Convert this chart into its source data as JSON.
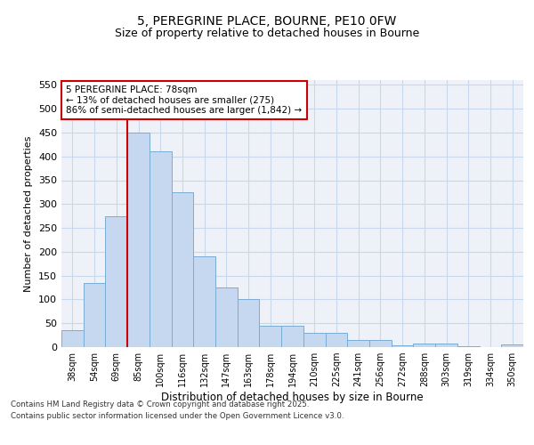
{
  "title_line1": "5, PEREGRINE PLACE, BOURNE, PE10 0FW",
  "title_line2": "Size of property relative to detached houses in Bourne",
  "xlabel": "Distribution of detached houses by size in Bourne",
  "ylabel": "Number of detached properties",
  "bar_color": "#c5d8f0",
  "bar_edge_color": "#7aadd4",
  "grid_color": "#c8d8ec",
  "background_color": "#eef2f8",
  "categories": [
    "38sqm",
    "54sqm",
    "69sqm",
    "85sqm",
    "100sqm",
    "116sqm",
    "132sqm",
    "147sqm",
    "163sqm",
    "178sqm",
    "194sqm",
    "210sqm",
    "225sqm",
    "241sqm",
    "256sqm",
    "272sqm",
    "288sqm",
    "303sqm",
    "319sqm",
    "334sqm",
    "350sqm"
  ],
  "values": [
    35,
    135,
    275,
    450,
    410,
    325,
    190,
    125,
    100,
    45,
    45,
    30,
    30,
    15,
    15,
    3,
    7,
    7,
    2,
    0,
    5
  ],
  "ylim": [
    0,
    560
  ],
  "yticks": [
    0,
    50,
    100,
    150,
    200,
    250,
    300,
    350,
    400,
    450,
    500,
    550
  ],
  "property_line_x": 2.5,
  "annotation_text": "5 PEREGRINE PLACE: 78sqm\n← 13% of detached houses are smaller (275)\n86% of semi-detached houses are larger (1,842) →",
  "annotation_box_color": "#ffffff",
  "annotation_box_edge": "#cc0000",
  "vline_color": "#cc0000",
  "footer_line1": "Contains HM Land Registry data © Crown copyright and database right 2025.",
  "footer_line2": "Contains public sector information licensed under the Open Government Licence v3.0."
}
